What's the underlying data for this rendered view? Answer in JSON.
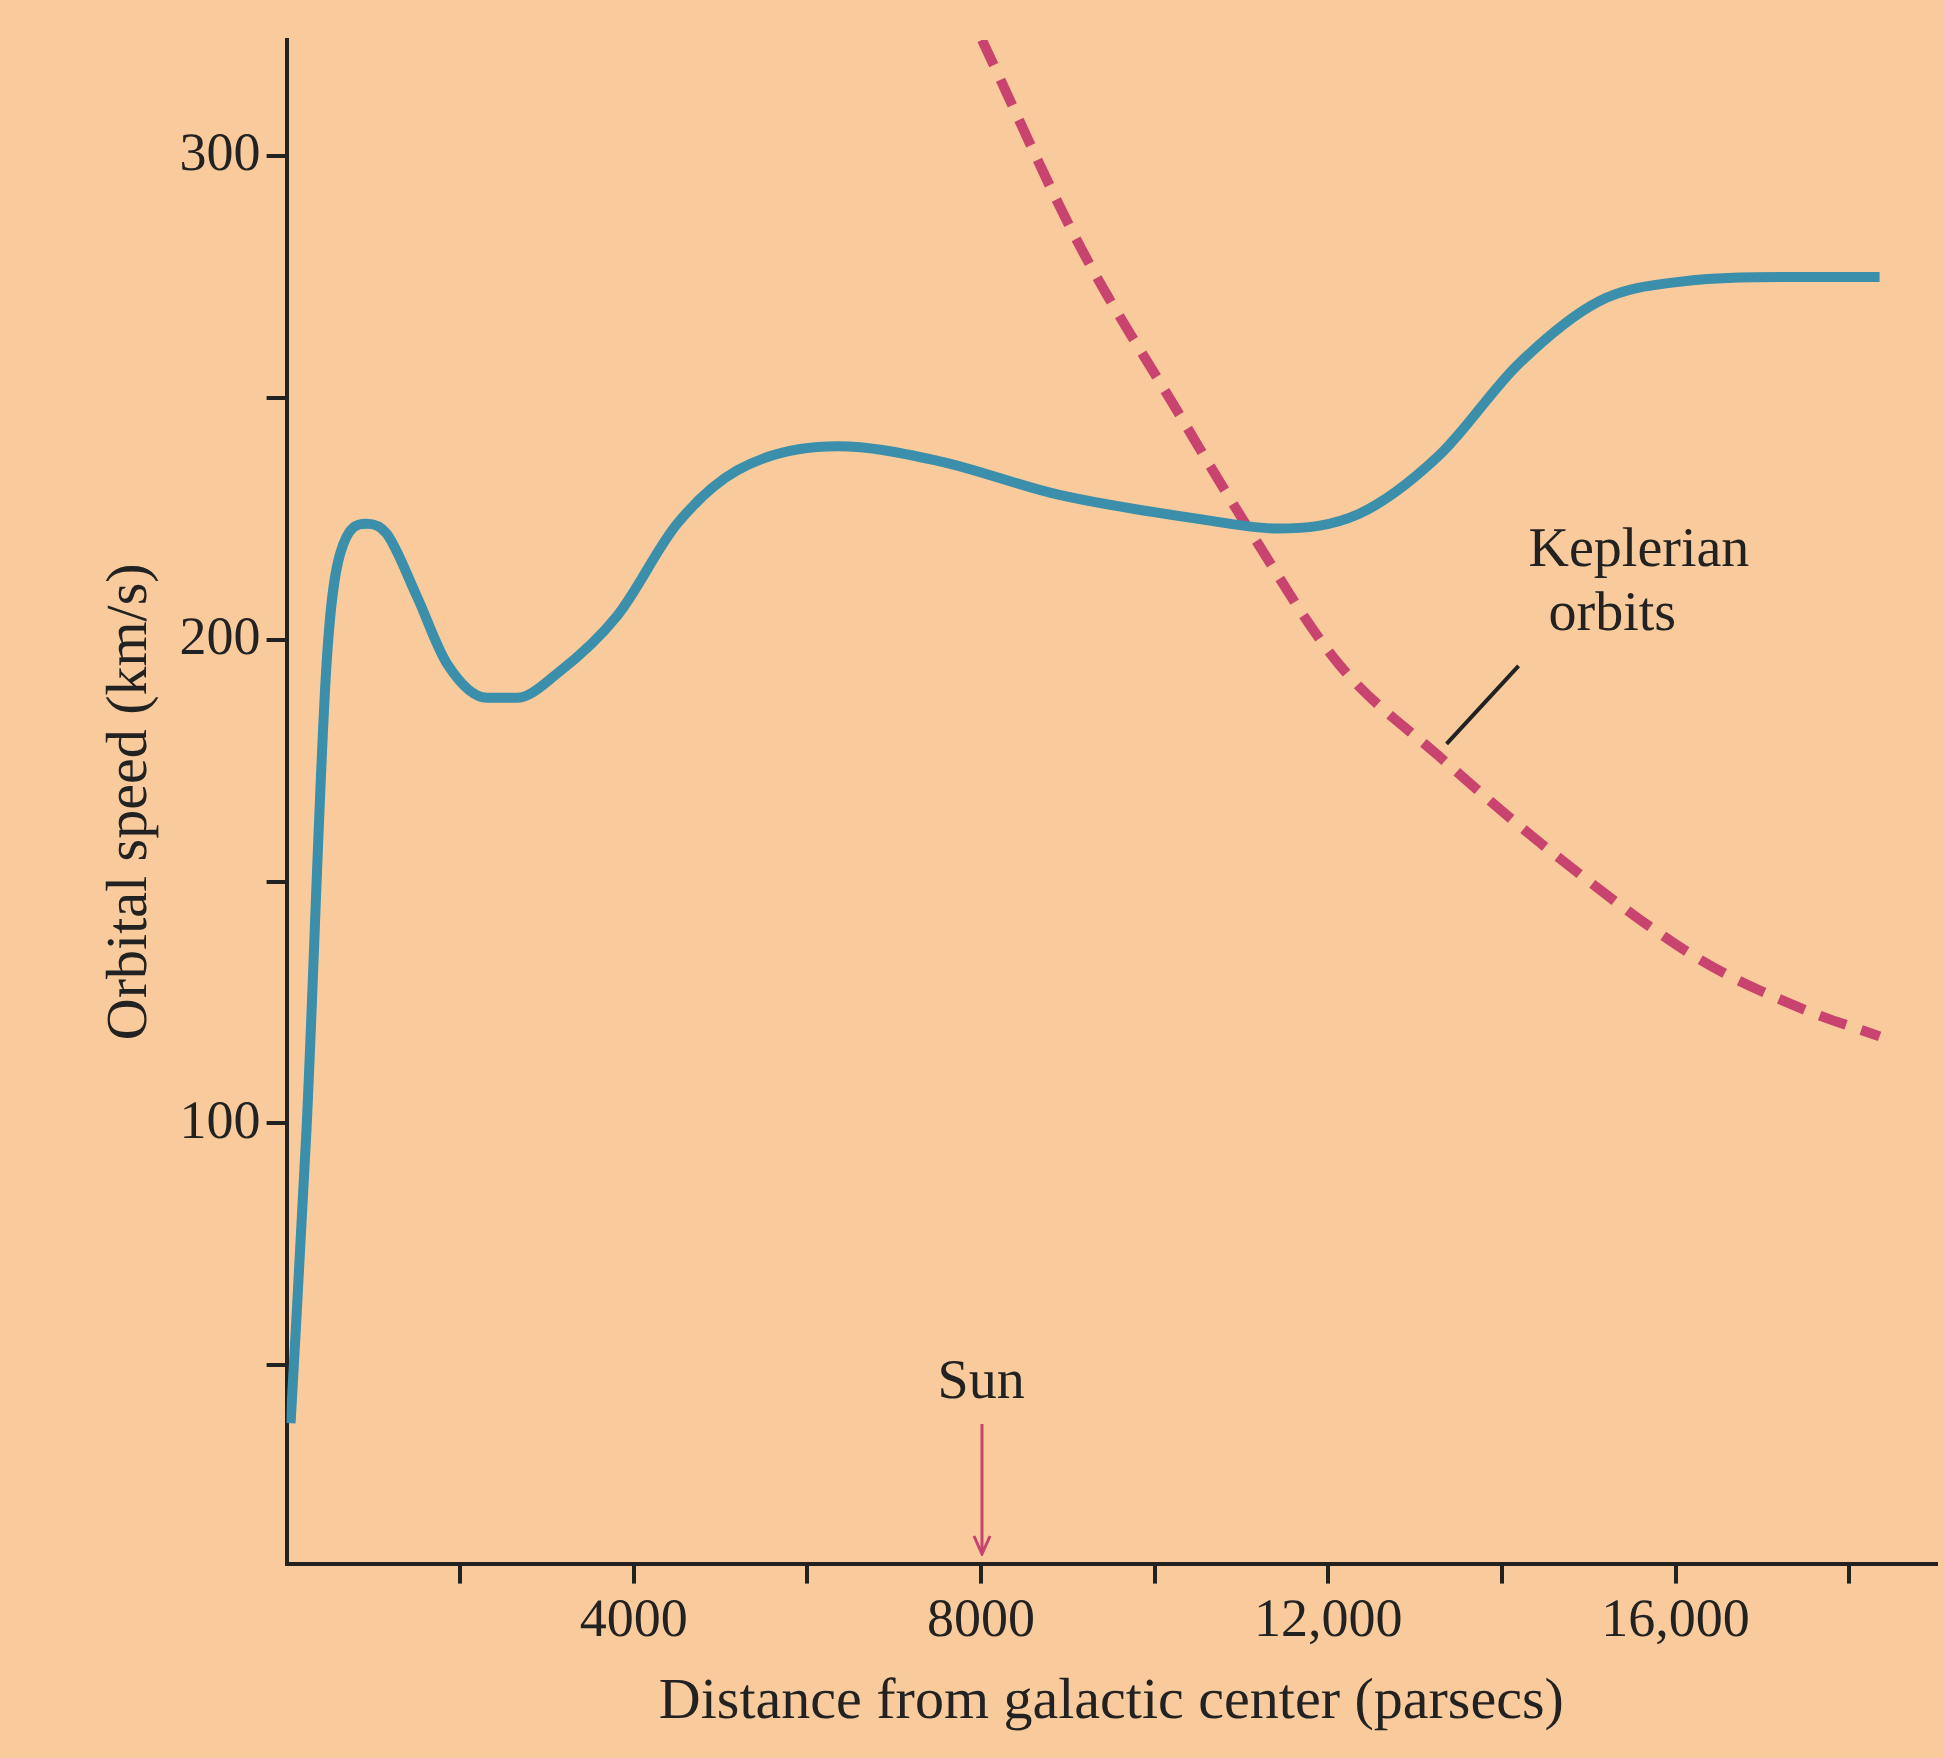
{
  "chart_data": {
    "type": "line",
    "xlabel": "Distance from galactic center (parsecs)",
    "ylabel": "Orbital speed (km/s)",
    "xlim": [
      0,
      19000
    ],
    "xticks": [
      {
        "value": 2000,
        "label": null
      },
      {
        "value": 4000,
        "label": "4000"
      },
      {
        "value": 6000,
        "label": null
      },
      {
        "value": 8000,
        "label": "8000"
      },
      {
        "value": 10000,
        "label": null
      },
      {
        "value": 12000,
        "label": "12,000"
      },
      {
        "value": 14000,
        "label": null
      },
      {
        "value": 16000,
        "label": "16,000"
      },
      {
        "value": 18000,
        "label": null
      }
    ],
    "ylim": [
      9,
      324
    ],
    "yticks": [
      {
        "value": 50,
        "label": null
      },
      100,
      {
        "value": 150,
        "label": null
      },
      200,
      {
        "value": 250,
        "label": null
      },
      300
    ],
    "grid": false,
    "legend": false,
    "marker": "none",
    "ref_lines": [
      {
        "axis": "x",
        "value": 8000,
        "label": "Sun",
        "color": "#c8446e"
      }
    ],
    "series": [
      {
        "color": "#3b8fab",
        "line_style": "solid",
        "x": [
          46,
          230,
          460,
          620,
          920,
          1150,
          1500,
          1850,
          2310,
          2650,
          3115,
          3810,
          4500,
          5190,
          6350,
          7500,
          8890,
          10500,
          11420,
          12350,
          13270,
          14190,
          15120,
          16040,
          17420,
          18350
        ],
        "values": [
          38,
          99,
          195,
          218,
          224,
          222,
          209,
          195,
          188,
          188,
          193,
          205,
          224,
          235,
          240,
          237,
          230,
          225,
          223,
          226,
          238,
          257,
          270,
          274,
          275,
          275
        ]
      },
      {
        "name": "Keplerian orbits",
        "color": "#c8446e",
        "line_style": "dashed",
        "x": [
          8010,
          9120,
          10270,
          11080,
          12120,
          13270,
          14650,
          16270,
          17420,
          18350
        ],
        "values": [
          324,
          282,
          247,
          223,
          195,
          176,
          155,
          134,
          124,
          118
        ]
      }
    ]
  }
}
